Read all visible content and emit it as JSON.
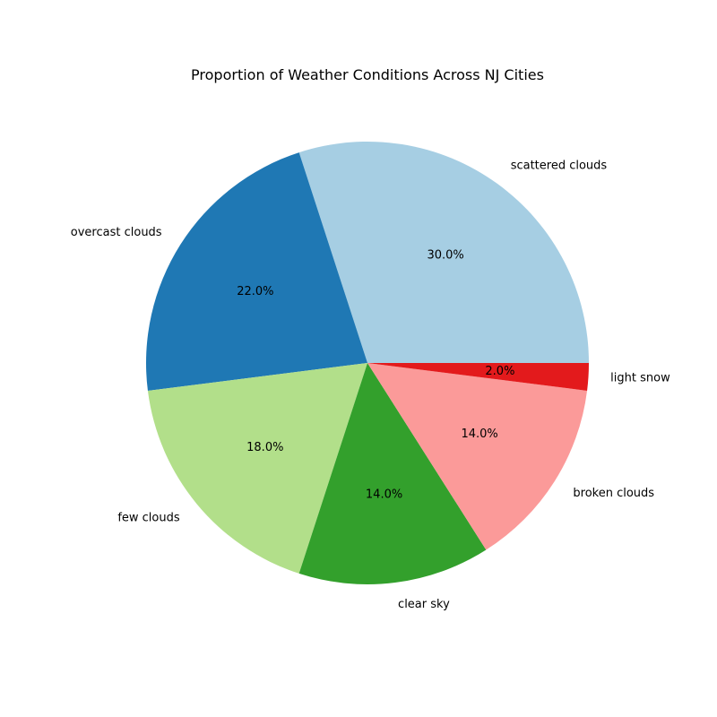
{
  "chart_data": {
    "type": "pie",
    "title": "Proportion of Weather Conditions Across NJ Cities",
    "slices": [
      {
        "label": "scattered clouds",
        "value": 30.0,
        "pct_label": "30.0%",
        "color": "#a6cee3"
      },
      {
        "label": "overcast clouds",
        "value": 22.0,
        "pct_label": "22.0%",
        "color": "#1f78b4"
      },
      {
        "label": "few clouds",
        "value": 18.0,
        "pct_label": "18.0%",
        "color": "#b2df8a"
      },
      {
        "label": "clear sky",
        "value": 14.0,
        "pct_label": "14.0%",
        "color": "#33a02c"
      },
      {
        "label": "broken clouds",
        "value": 14.0,
        "pct_label": "14.0%",
        "color": "#fb9a99"
      },
      {
        "label": "light snow",
        "value": 2.0,
        "pct_label": "2.0%",
        "color": "#e31a1c"
      }
    ],
    "start_angle_deg": 0,
    "direction": "counterclockwise",
    "legend": "none"
  }
}
